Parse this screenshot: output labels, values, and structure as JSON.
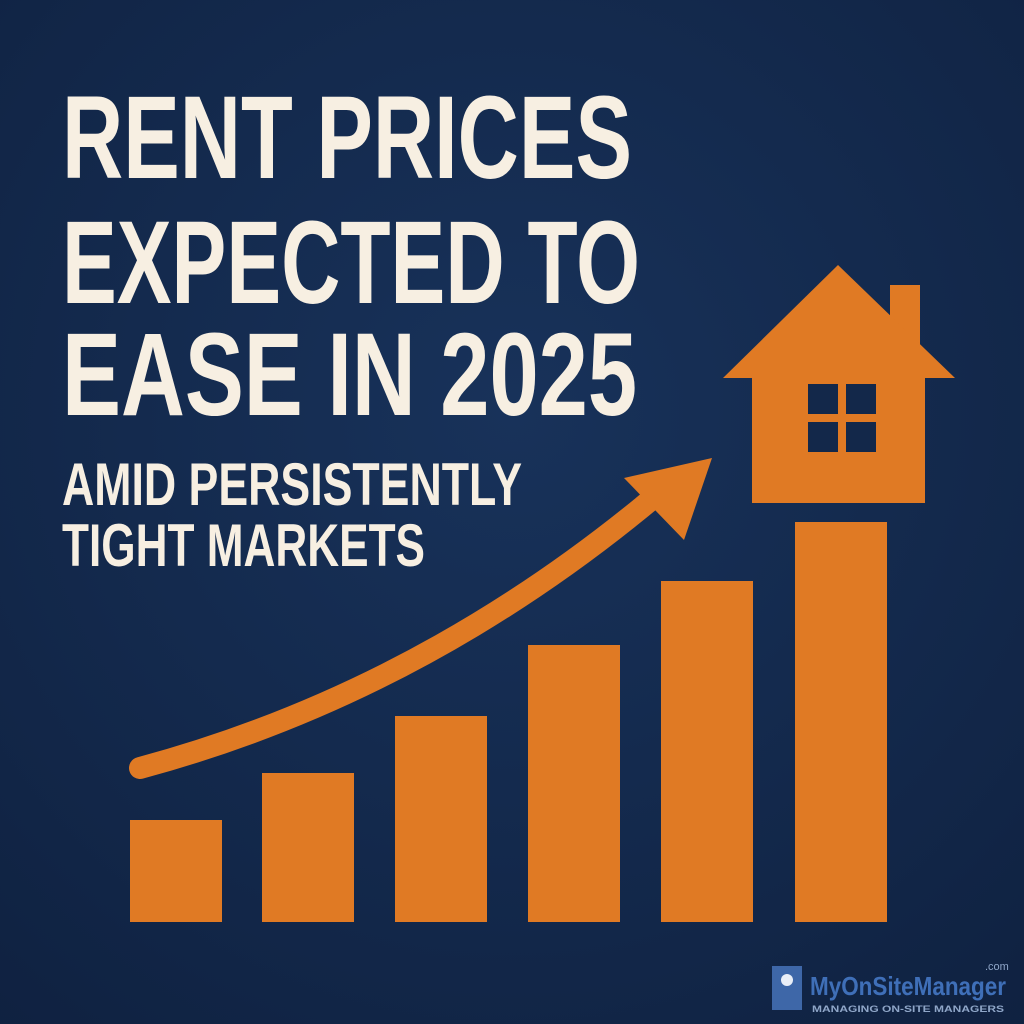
{
  "headline": {
    "lines": [
      "RENT PRICES",
      "EXPECTED TO",
      "EASE IN 2025"
    ]
  },
  "subheadline": {
    "lines": [
      "AMID PERSISTENTLY",
      "TIGHT MARKETS"
    ]
  },
  "logo": {
    "name": "MyOnSiteManager",
    "suffix": ".com",
    "tagline": "MANAGING ON-SITE MANAGERS"
  }
}
